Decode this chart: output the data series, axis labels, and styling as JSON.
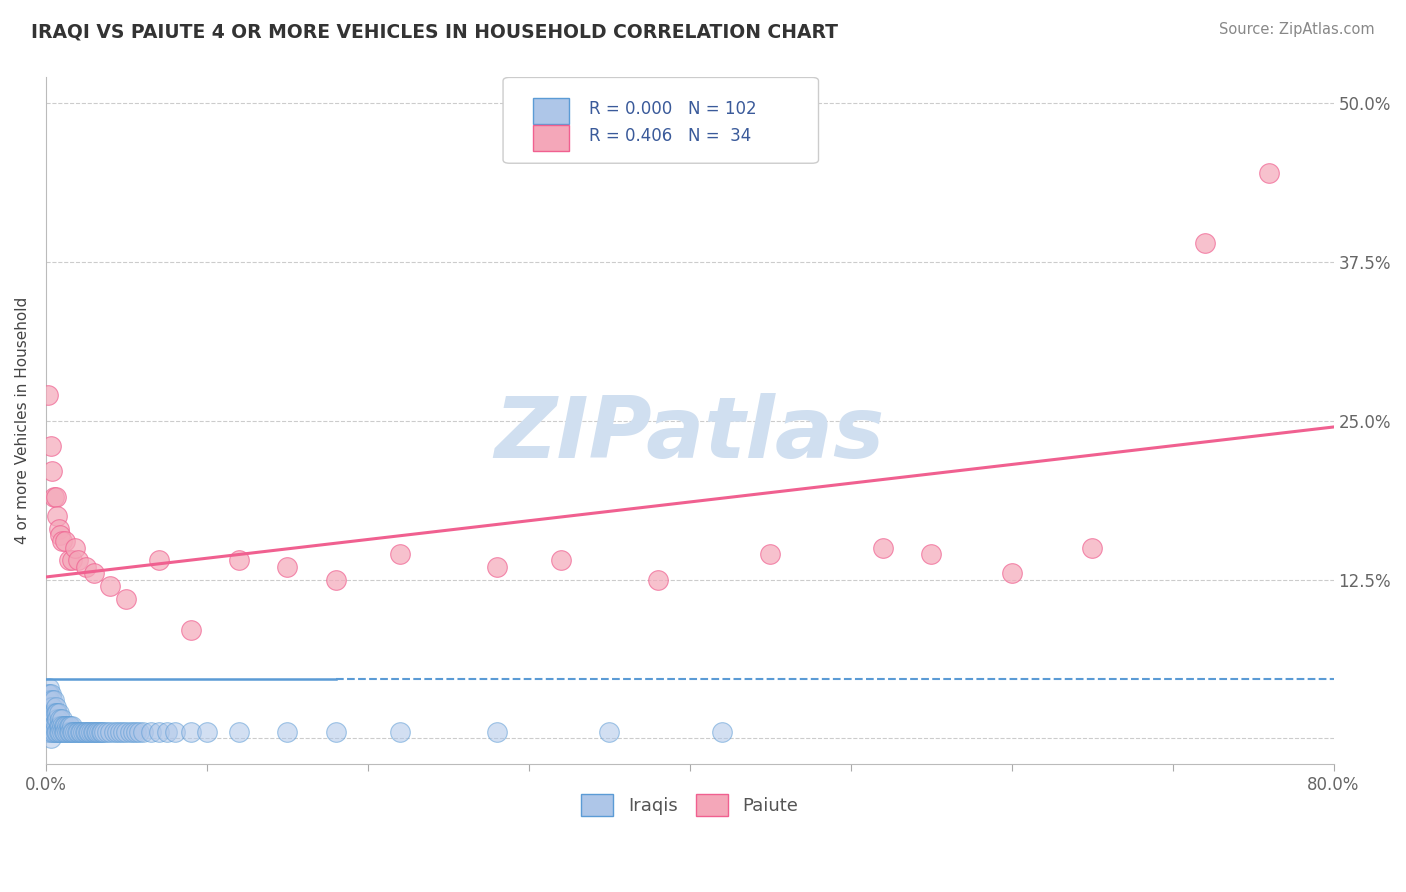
{
  "title": "IRAQI VS PAIUTE 4 OR MORE VEHICLES IN HOUSEHOLD CORRELATION CHART",
  "source": "Source: ZipAtlas.com",
  "ylabel": "4 or more Vehicles in Household",
  "xlim": [
    0.0,
    0.8
  ],
  "ylim": [
    -0.02,
    0.52
  ],
  "ytick_positions": [
    0.0,
    0.125,
    0.25,
    0.375,
    0.5
  ],
  "ytick_labels": [
    "",
    "12.5%",
    "25.0%",
    "37.5%",
    "50.0%"
  ],
  "iraqis_R": 0.0,
  "iraqis_N": 102,
  "paiute_R": 0.406,
  "paiute_N": 34,
  "iraqis_color": "#aec6e8",
  "paiute_color": "#f4a7b9",
  "iraqis_line_color": "#5b9bd5",
  "paiute_line_color": "#f06090",
  "watermark": "ZIPatlas",
  "watermark_color": "#d0dff0",
  "background_color": "#ffffff",
  "legend_text_color": "#3a5a9a",
  "iraqis_x": [
    0.001,
    0.001,
    0.001,
    0.001,
    0.001,
    0.001,
    0.001,
    0.002,
    0.002,
    0.002,
    0.002,
    0.002,
    0.002,
    0.002,
    0.003,
    0.003,
    0.003,
    0.003,
    0.003,
    0.003,
    0.004,
    0.004,
    0.004,
    0.004,
    0.004,
    0.005,
    0.005,
    0.005,
    0.005,
    0.006,
    0.006,
    0.006,
    0.006,
    0.007,
    0.007,
    0.007,
    0.008,
    0.008,
    0.008,
    0.009,
    0.009,
    0.009,
    0.01,
    0.01,
    0.01,
    0.011,
    0.011,
    0.012,
    0.012,
    0.013,
    0.013,
    0.014,
    0.014,
    0.015,
    0.015,
    0.016,
    0.016,
    0.017,
    0.018,
    0.019,
    0.02,
    0.021,
    0.022,
    0.023,
    0.024,
    0.025,
    0.026,
    0.027,
    0.028,
    0.029,
    0.03,
    0.031,
    0.032,
    0.033,
    0.034,
    0.035,
    0.036,
    0.038,
    0.04,
    0.042,
    0.044,
    0.046,
    0.048,
    0.05,
    0.052,
    0.054,
    0.056,
    0.058,
    0.06,
    0.065,
    0.07,
    0.075,
    0.08,
    0.09,
    0.1,
    0.12,
    0.15,
    0.18,
    0.22,
    0.28,
    0.35,
    0.42
  ],
  "iraqis_y": [
    0.035,
    0.03,
    0.025,
    0.02,
    0.015,
    0.01,
    0.005,
    0.04,
    0.035,
    0.03,
    0.025,
    0.02,
    0.015,
    0.005,
    0.035,
    0.025,
    0.02,
    0.01,
    0.005,
    0.0,
    0.03,
    0.025,
    0.015,
    0.01,
    0.005,
    0.03,
    0.02,
    0.01,
    0.005,
    0.025,
    0.02,
    0.01,
    0.005,
    0.02,
    0.015,
    0.005,
    0.02,
    0.01,
    0.005,
    0.015,
    0.01,
    0.005,
    0.015,
    0.01,
    0.005,
    0.01,
    0.005,
    0.01,
    0.005,
    0.01,
    0.005,
    0.01,
    0.005,
    0.01,
    0.005,
    0.01,
    0.005,
    0.005,
    0.005,
    0.005,
    0.005,
    0.005,
    0.005,
    0.005,
    0.005,
    0.005,
    0.005,
    0.005,
    0.005,
    0.005,
    0.005,
    0.005,
    0.005,
    0.005,
    0.005,
    0.005,
    0.005,
    0.005,
    0.005,
    0.005,
    0.005,
    0.005,
    0.005,
    0.005,
    0.005,
    0.005,
    0.005,
    0.005,
    0.005,
    0.005,
    0.005,
    0.005,
    0.005,
    0.005,
    0.005,
    0.005,
    0.005,
    0.005,
    0.005,
    0.005,
    0.005,
    0.005
  ],
  "paiute_x": [
    0.001,
    0.003,
    0.004,
    0.005,
    0.006,
    0.007,
    0.008,
    0.009,
    0.01,
    0.012,
    0.014,
    0.016,
    0.018,
    0.02,
    0.025,
    0.03,
    0.04,
    0.05,
    0.07,
    0.09,
    0.12,
    0.15,
    0.18,
    0.22,
    0.28,
    0.32,
    0.38,
    0.45,
    0.52,
    0.55,
    0.6,
    0.65,
    0.72,
    0.76
  ],
  "paiute_y": [
    0.27,
    0.23,
    0.21,
    0.19,
    0.19,
    0.175,
    0.165,
    0.16,
    0.155,
    0.155,
    0.14,
    0.14,
    0.15,
    0.14,
    0.135,
    0.13,
    0.12,
    0.11,
    0.14,
    0.085,
    0.14,
    0.135,
    0.125,
    0.145,
    0.135,
    0.14,
    0.125,
    0.145,
    0.15,
    0.145,
    0.13,
    0.15,
    0.39,
    0.445
  ],
  "paiute_trend_x0": 0.0,
  "paiute_trend_x1": 0.8,
  "paiute_trend_y0": 0.127,
  "paiute_trend_y1": 0.245,
  "iraqi_trend_y": 0.047
}
